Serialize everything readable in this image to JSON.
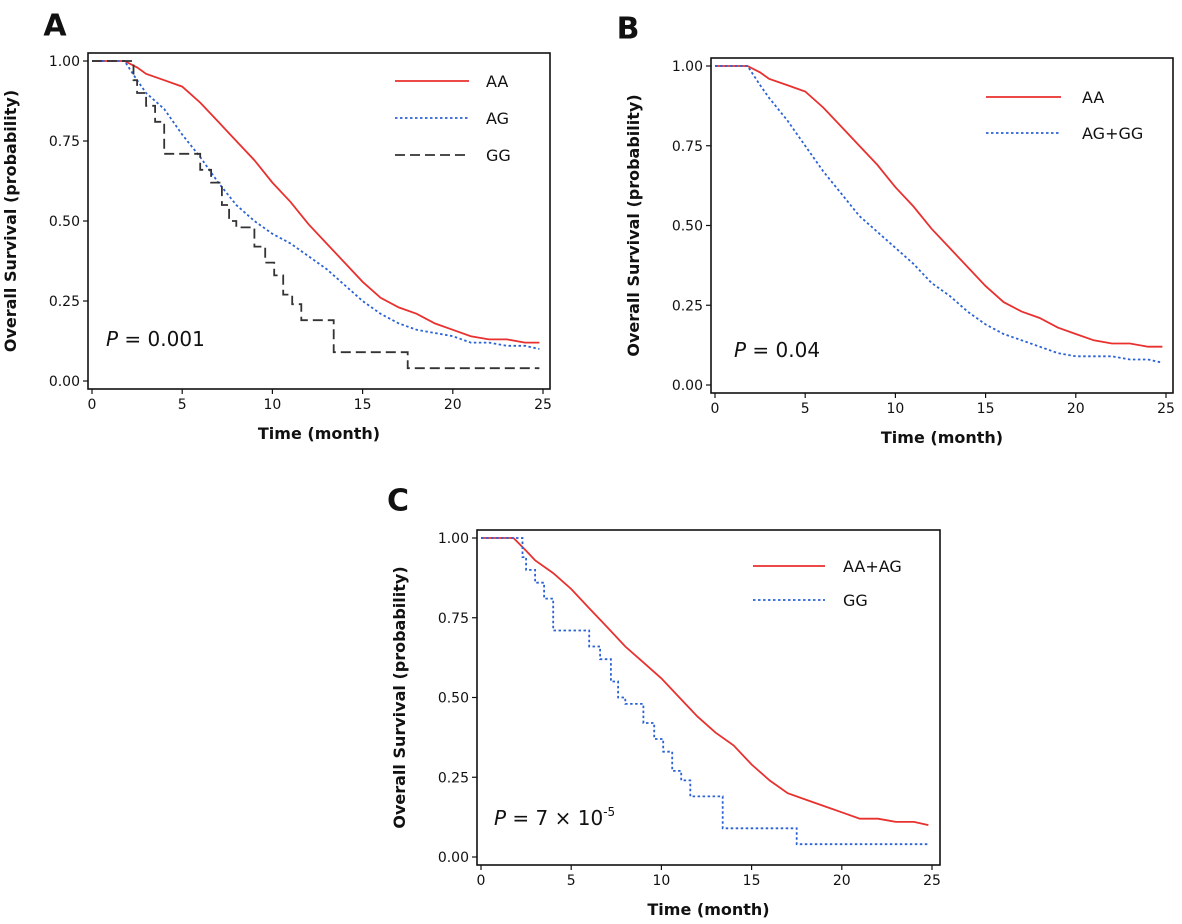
{
  "chart_data": [
    {
      "panel": "A",
      "type": "line",
      "xlabel": "Time (month)",
      "ylabel": "Overall Survival (probability)",
      "xlim": [
        0,
        25
      ],
      "ylim": [
        0,
        1
      ],
      "xticks": [
        "0",
        "5",
        "10",
        "15",
        "20",
        "25"
      ],
      "yticks": [
        "0.00",
        "0.25",
        "0.50",
        "0.75",
        "1.00"
      ],
      "p_value": {
        "prefix": "P",
        "text": " = 0.001",
        "sup": ""
      },
      "legend_position": "top-right",
      "series": [
        {
          "name": "AA",
          "color": "#e8312f",
          "dash": "solid",
          "step": false,
          "x": [
            0,
            1.8,
            2.5,
            3,
            4,
            5,
            6,
            7,
            8,
            9,
            10,
            11,
            12,
            13,
            14,
            15,
            16,
            17,
            18,
            19,
            20,
            21,
            22,
            23,
            24,
            24.8
          ],
          "y": [
            1.0,
            1.0,
            0.98,
            0.96,
            0.94,
            0.92,
            0.87,
            0.81,
            0.75,
            0.69,
            0.62,
            0.56,
            0.49,
            0.43,
            0.37,
            0.31,
            0.26,
            0.23,
            0.21,
            0.18,
            0.16,
            0.14,
            0.13,
            0.13,
            0.12,
            0.12
          ]
        },
        {
          "name": "AG",
          "color": "#2a62d6",
          "dash": "dotted",
          "step": false,
          "x": [
            0,
            1.8,
            2.5,
            3,
            4,
            5,
            6,
            7,
            8,
            9,
            10,
            11,
            12,
            13,
            14,
            15,
            16,
            17,
            18,
            19,
            20,
            21,
            22,
            23,
            24,
            24.8
          ],
          "y": [
            1.0,
            1.0,
            0.94,
            0.9,
            0.85,
            0.77,
            0.7,
            0.62,
            0.55,
            0.5,
            0.46,
            0.43,
            0.39,
            0.35,
            0.3,
            0.25,
            0.21,
            0.18,
            0.16,
            0.15,
            0.14,
            0.12,
            0.12,
            0.11,
            0.11,
            0.1
          ]
        },
        {
          "name": "GG",
          "color": "#333333",
          "dash": "dashed",
          "step": true,
          "x": [
            0,
            1.8,
            2.3,
            2.5,
            3,
            3.5,
            4,
            6.0,
            6.6,
            7.2,
            7.6,
            8.0,
            9.0,
            9.6,
            10.1,
            10.6,
            11.1,
            11.6,
            12.4,
            13.4,
            14.0,
            17.5,
            24.8
          ],
          "y": [
            1.0,
            1.0,
            0.94,
            0.9,
            0.86,
            0.81,
            0.71,
            0.66,
            0.62,
            0.55,
            0.5,
            0.48,
            0.42,
            0.37,
            0.33,
            0.27,
            0.24,
            0.19,
            0.19,
            0.09,
            0.09,
            0.04,
            0.04
          ]
        }
      ]
    },
    {
      "panel": "B",
      "type": "line",
      "xlabel": "Time (month)",
      "ylabel": "Overall Survival (probability)",
      "xlim": [
        0,
        25
      ],
      "ylim": [
        0,
        1
      ],
      "xticks": [
        "0",
        "5",
        "10",
        "15",
        "20",
        "25"
      ],
      "yticks": [
        "0.00",
        "0.25",
        "0.50",
        "0.75",
        "1.00"
      ],
      "p_value": {
        "prefix": "P",
        "text": " = 0.04",
        "sup": ""
      },
      "legend_position": "top-right",
      "series": [
        {
          "name": "AA",
          "color": "#e8312f",
          "dash": "solid",
          "step": false,
          "x": [
            0,
            1.8,
            2.5,
            3,
            4,
            5,
            6,
            7,
            8,
            9,
            10,
            11,
            12,
            13,
            14,
            15,
            16,
            17,
            18,
            19,
            20,
            21,
            22,
            23,
            24,
            24.8
          ],
          "y": [
            1.0,
            1.0,
            0.98,
            0.96,
            0.94,
            0.92,
            0.87,
            0.81,
            0.75,
            0.69,
            0.62,
            0.56,
            0.49,
            0.43,
            0.37,
            0.31,
            0.26,
            0.23,
            0.21,
            0.18,
            0.16,
            0.14,
            0.13,
            0.13,
            0.12,
            0.12
          ]
        },
        {
          "name": "AG+GG",
          "color": "#2a62d6",
          "dash": "dotted",
          "step": false,
          "x": [
            0,
            1.8,
            2.5,
            3,
            4,
            5,
            6,
            7,
            8,
            9,
            10,
            11,
            12,
            13,
            14,
            15,
            16,
            17,
            18,
            19,
            20,
            21,
            22,
            23,
            24,
            24.8
          ],
          "y": [
            1.0,
            1.0,
            0.94,
            0.9,
            0.83,
            0.75,
            0.67,
            0.6,
            0.53,
            0.48,
            0.43,
            0.38,
            0.32,
            0.28,
            0.23,
            0.19,
            0.16,
            0.14,
            0.12,
            0.1,
            0.09,
            0.09,
            0.09,
            0.08,
            0.08,
            0.07
          ]
        }
      ]
    },
    {
      "panel": "C",
      "type": "line",
      "xlabel": "Time (month)",
      "ylabel": "Overall Survival (probability)",
      "xlim": [
        0,
        25
      ],
      "ylim": [
        0,
        1
      ],
      "xticks": [
        "0",
        "5",
        "10",
        "15",
        "20",
        "25"
      ],
      "yticks": [
        "0.00",
        "0.25",
        "0.50",
        "0.75",
        "1.00"
      ],
      "p_value": {
        "prefix": "P",
        "text": " = 7 × 10",
        "sup": "-5"
      },
      "legend_position": "top-right",
      "series": [
        {
          "name": "AA+AG",
          "color": "#e8312f",
          "dash": "solid",
          "step": false,
          "x": [
            0,
            1.8,
            2.5,
            3,
            4,
            5,
            6,
            7,
            8,
            9,
            10,
            11,
            12,
            13,
            14,
            15,
            16,
            17,
            18,
            19,
            20,
            21,
            22,
            23,
            24,
            24.8
          ],
          "y": [
            1.0,
            1.0,
            0.96,
            0.93,
            0.89,
            0.84,
            0.78,
            0.72,
            0.66,
            0.61,
            0.56,
            0.5,
            0.44,
            0.39,
            0.35,
            0.29,
            0.24,
            0.2,
            0.18,
            0.16,
            0.14,
            0.12,
            0.12,
            0.11,
            0.11,
            0.1
          ]
        },
        {
          "name": "GG",
          "color": "#2a62d6",
          "dash": "dotted",
          "step": true,
          "x": [
            0,
            1.8,
            2.3,
            2.5,
            3,
            3.5,
            4,
            6.0,
            6.6,
            7.2,
            7.6,
            8.0,
            9.0,
            9.6,
            10.1,
            10.6,
            11.1,
            11.6,
            12.4,
            13.4,
            14.0,
            17.5,
            24.8
          ],
          "y": [
            1.0,
            1.0,
            0.94,
            0.9,
            0.86,
            0.81,
            0.71,
            0.66,
            0.62,
            0.55,
            0.5,
            0.48,
            0.42,
            0.37,
            0.33,
            0.27,
            0.24,
            0.19,
            0.19,
            0.09,
            0.09,
            0.04,
            0.04
          ]
        }
      ]
    }
  ]
}
